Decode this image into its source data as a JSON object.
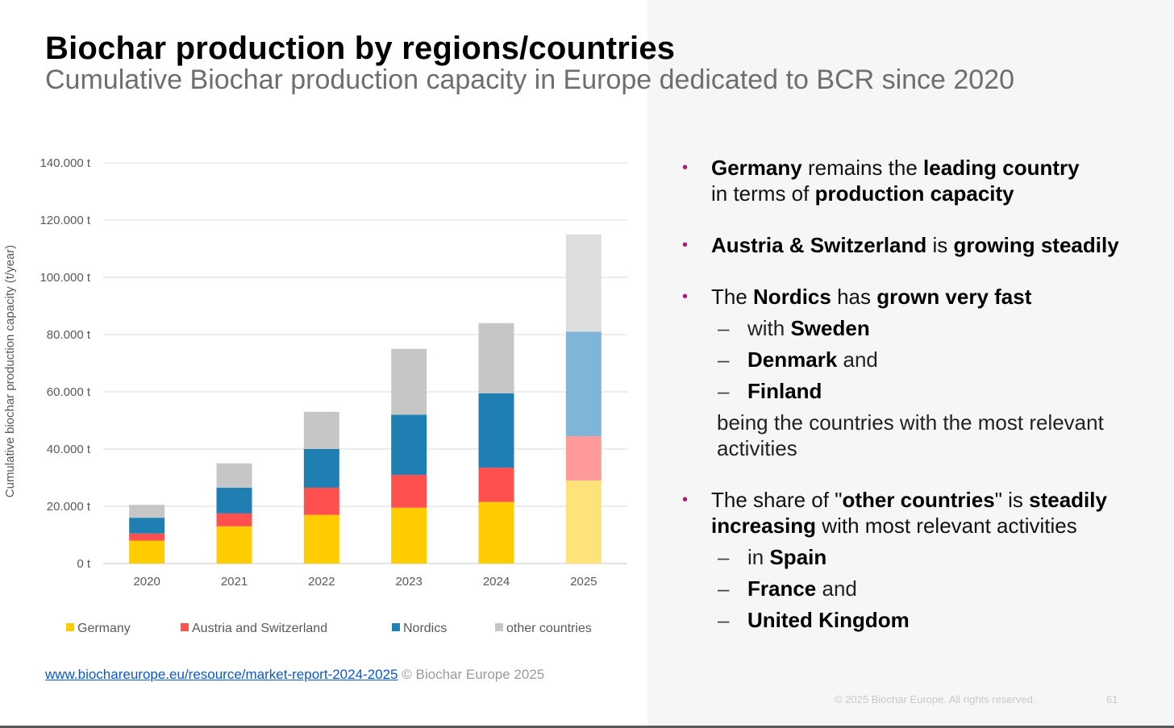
{
  "title": "Biochar production by regions/countries",
  "subtitle": "Cumulative Biochar production capacity in Europe dedicated to BCR since 2020",
  "chart_data": {
    "type": "bar",
    "stacked": true,
    "categories": [
      "2020",
      "2021",
      "2022",
      "2023",
      "2024",
      "2025"
    ],
    "series": [
      {
        "name": "Germany",
        "color": "#ffcc00",
        "values": [
          8000,
          13000,
          17000,
          19500,
          21500,
          29000
        ]
      },
      {
        "name": "Austria and Switzerland",
        "color": "#ff5050",
        "values": [
          2500,
          4500,
          9500,
          11500,
          12000,
          15500
        ]
      },
      {
        "name": "Nordics",
        "color": "#1f7fb2",
        "values": [
          5500,
          9000,
          13500,
          21000,
          26000,
          36500
        ]
      },
      {
        "name": "other countries",
        "color": "#c6c6c6",
        "values": [
          4500,
          8500,
          13000,
          23000,
          24500,
          34000
        ]
      }
    ],
    "highlight_faded_category": "2025",
    "faded_colors": [
      "#ffe27a",
      "#ff9a9a",
      "#7fb5d6",
      "#dedede"
    ],
    "ylabel": "Cumulative biochar production capacity (t/year)",
    "ylim": [
      0,
      140000
    ],
    "yticks": [
      {
        "value": 0,
        "label": "0 t"
      },
      {
        "value": 20000,
        "label": "20.000 t"
      },
      {
        "value": 40000,
        "label": "40.000 t"
      },
      {
        "value": 60000,
        "label": "60.000 t"
      },
      {
        "value": 80000,
        "label": "80.000 t"
      },
      {
        "value": 100000,
        "label": "100.000 t"
      },
      {
        "value": 120000,
        "label": "120.000 t"
      },
      {
        "value": 140000,
        "label": "140.000 t"
      }
    ],
    "legend_position": "bottom",
    "grid": true
  },
  "footnote": {
    "link_text": "www.biochareurope.eu/resource/market-report-2024-2025",
    "copyright": "© Biochar Europe 2025"
  },
  "bullets": {
    "marker": "•",
    "dash": "–",
    "b1": {
      "s1": "Germany",
      "t1": " remains the ",
      "s2": "leading country",
      "t2": " in terms of ",
      "s3": "production capacity"
    },
    "b2": {
      "s1": "Austria & Switzerland",
      "t1": " is ",
      "s2": "growing steadily"
    },
    "b3": {
      "t0": "The ",
      "s1": "Nordics",
      "t1": " has ",
      "s2": "grown very fast"
    },
    "b3_subs": {
      "a_pre": "with ",
      "a_bold": "Sweden",
      "b_bold": "Denmark",
      "b_post": " and",
      "c_bold": "Finland"
    },
    "b3_tail": "being the countries with the most relevant activities",
    "b4": {
      "t0": "The share of \"",
      "s1": "other countries",
      "t1": "\" is ",
      "s2": "steadily increasing",
      "t2": " with most relevant activities"
    },
    "b4_subs": {
      "a_pre": "in ",
      "a_bold": "Spain",
      "b_bold": "France",
      "b_post": " and",
      "c_bold": "United Kingdom"
    }
  },
  "footer": {
    "copyright": "© 2025 Biochar Europe. All rights reserved.",
    "page": "61"
  }
}
